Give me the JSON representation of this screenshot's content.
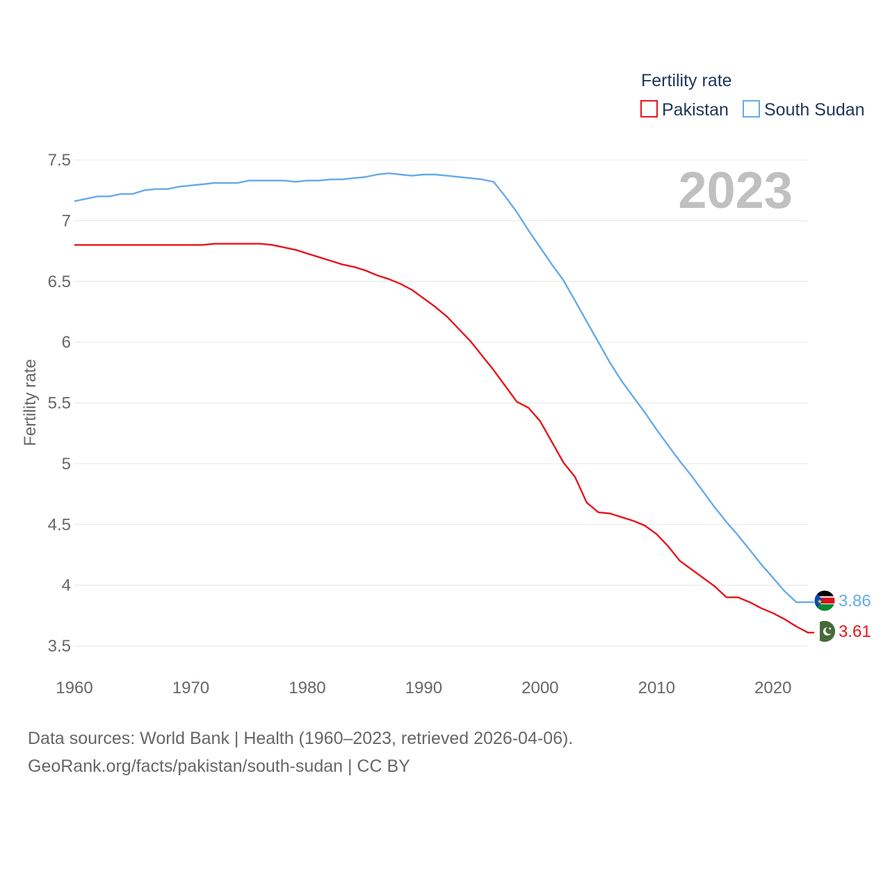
{
  "chart_data": {
    "type": "line",
    "legend_title": "Fertility rate",
    "ylabel": "Fertility rate",
    "xlabel": "",
    "year_label": "2023",
    "ylim": [
      3.5,
      7.5
    ],
    "xlim": [
      1960,
      2023
    ],
    "y_ticks": [
      3.5,
      4,
      4.5,
      5,
      5.5,
      6,
      6.5,
      7,
      7.5
    ],
    "y_tick_labels": [
      "3.5",
      "4",
      "4.5",
      "5",
      "5.5",
      "6",
      "6.5",
      "7",
      "7.5"
    ],
    "x_ticks": [
      1960,
      1970,
      1980,
      1990,
      2000,
      2010,
      2020
    ],
    "x_tick_labels": [
      "1960",
      "1970",
      "1980",
      "1990",
      "2000",
      "2010",
      "2020"
    ],
    "legend_position": "top-right",
    "grid": true,
    "x": [
      1960,
      1961,
      1962,
      1963,
      1964,
      1965,
      1966,
      1967,
      1968,
      1969,
      1970,
      1971,
      1972,
      1973,
      1974,
      1975,
      1976,
      1977,
      1978,
      1979,
      1980,
      1981,
      1982,
      1983,
      1984,
      1985,
      1986,
      1987,
      1988,
      1989,
      1990,
      1991,
      1992,
      1993,
      1994,
      1995,
      1996,
      1997,
      1998,
      1999,
      2000,
      2001,
      2002,
      2003,
      2004,
      2005,
      2006,
      2007,
      2008,
      2009,
      2010,
      2011,
      2012,
      2013,
      2014,
      2015,
      2016,
      2017,
      2018,
      2019,
      2020,
      2021,
      2022,
      2023
    ],
    "series": [
      {
        "name": "Pakistan",
        "color": "#e8141b",
        "end_label": "3.61",
        "values": [
          6.8,
          6.8,
          6.8,
          6.8,
          6.8,
          6.8,
          6.8,
          6.8,
          6.8,
          6.8,
          6.8,
          6.8,
          6.81,
          6.81,
          6.81,
          6.81,
          6.81,
          6.8,
          6.78,
          6.76,
          6.73,
          6.7,
          6.67,
          6.64,
          6.62,
          6.59,
          6.55,
          6.52,
          6.48,
          6.43,
          6.36,
          6.29,
          6.21,
          6.11,
          6.01,
          5.89,
          5.77,
          5.64,
          5.51,
          5.46,
          5.35,
          5.18,
          5.01,
          4.89,
          4.68,
          4.6,
          4.59,
          4.56,
          4.53,
          4.49,
          4.42,
          4.32,
          4.2,
          4.13,
          4.06,
          3.99,
          3.9,
          3.9,
          3.86,
          3.81,
          3.77,
          3.72,
          3.66,
          3.61
        ]
      },
      {
        "name": "South Sudan",
        "color": "#66aae9",
        "end_label": "3.86",
        "values": [
          7.16,
          7.18,
          7.2,
          7.2,
          7.22,
          7.22,
          7.25,
          7.26,
          7.26,
          7.28,
          7.29,
          7.3,
          7.31,
          7.31,
          7.31,
          7.33,
          7.33,
          7.33,
          7.33,
          7.32,
          7.33,
          7.33,
          7.34,
          7.34,
          7.35,
          7.36,
          7.38,
          7.39,
          7.38,
          7.37,
          7.38,
          7.38,
          7.37,
          7.36,
          7.35,
          7.34,
          7.32,
          7.2,
          7.07,
          6.92,
          6.78,
          6.64,
          6.51,
          6.34,
          6.17,
          6,
          5.83,
          5.68,
          5.55,
          5.42,
          5.28,
          5.15,
          5.02,
          4.9,
          4.77,
          4.64,
          4.52,
          4.41,
          4.29,
          4.17,
          4.06,
          3.95,
          3.86,
          3.86
        ]
      }
    ]
  },
  "footer": {
    "line1": "Data sources: World Bank | Health (1960–2023, retrieved 2026-04-06).",
    "line2": "GeoRank.org/facts/pakistan/south-sudan | CC BY"
  }
}
